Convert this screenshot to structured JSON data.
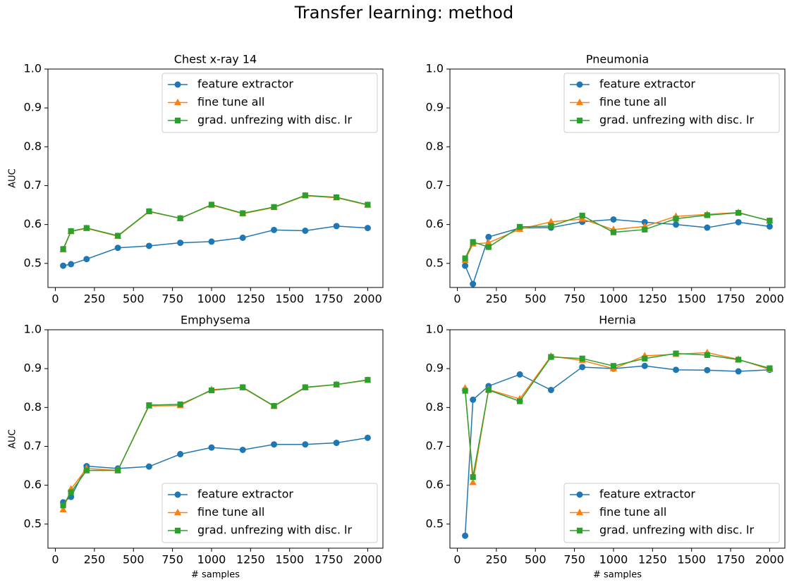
{
  "title": "Transfer learning: method",
  "chart_data": [
    {
      "type": "line",
      "title": "Chest x-ray 14",
      "ylabel": "AUC",
      "legend": "upper right",
      "x": [
        50,
        100,
        200,
        400,
        600,
        800,
        1000,
        1200,
        1400,
        1600,
        1800,
        2000
      ],
      "xlim": [
        -47.5,
        2097.5
      ],
      "xticks": [
        0,
        250,
        500,
        750,
        1000,
        1250,
        1500,
        1750,
        2000
      ],
      "ylim": [
        0.438,
        1.0
      ],
      "yticks": [
        0.5,
        0.6,
        0.7,
        0.8,
        0.9,
        {
          "value": 1,
          "label": "1.0"
        }
      ],
      "series": [
        {
          "name": "feature extractor",
          "color": "#1f77b4",
          "marker": "o",
          "values": [
            0.494,
            0.498,
            0.511,
            0.54,
            0.545,
            0.553,
            0.556,
            0.566,
            0.586,
            0.584,
            0.596,
            0.591
          ]
        },
        {
          "name": "fine tune all",
          "color": "#ff7f0e",
          "marker": "^",
          "values": [
            0.535,
            0.582,
            0.59,
            0.57,
            0.633,
            0.616,
            0.65,
            0.628,
            0.644,
            0.674,
            0.669,
            0.65
          ]
        },
        {
          "name": "grad. unfrezing with disc. lr",
          "color": "#2ca02c",
          "marker": "s",
          "values": [
            0.537,
            0.583,
            0.591,
            0.571,
            0.634,
            0.616,
            0.651,
            0.629,
            0.645,
            0.675,
            0.67,
            0.651
          ]
        }
      ]
    },
    {
      "type": "line",
      "title": "Pneumonia",
      "legend": "upper right",
      "x": [
        50,
        100,
        200,
        400,
        600,
        800,
        1000,
        1200,
        1400,
        1600,
        1800,
        2000
      ],
      "xlim": [
        -47.5,
        2097.5
      ],
      "xticks": [
        0,
        250,
        500,
        750,
        1000,
        1250,
        1500,
        1750,
        2000
      ],
      "ylim": [
        0.438,
        1.0
      ],
      "yticks": [
        0.5,
        0.6,
        0.7,
        0.8,
        0.9,
        {
          "value": 1,
          "label": "1.0"
        }
      ],
      "series": [
        {
          "name": "feature extractor",
          "color": "#1f77b4",
          "marker": "o",
          "values": [
            0.494,
            0.447,
            0.568,
            0.591,
            0.592,
            0.607,
            0.613,
            0.606,
            0.6,
            0.592,
            0.606,
            0.595
          ]
        },
        {
          "name": "fine tune all",
          "color": "#ff7f0e",
          "marker": "^",
          "values": [
            0.508,
            0.55,
            0.553,
            0.588,
            0.607,
            0.614,
            0.587,
            0.595,
            0.621,
            0.626,
            0.631,
            0.609
          ]
        },
        {
          "name": "grad. unfrezing with disc. lr",
          "color": "#2ca02c",
          "marker": "s",
          "values": [
            0.513,
            0.555,
            0.542,
            0.594,
            0.596,
            0.623,
            0.58,
            0.587,
            0.615,
            0.624,
            0.63,
            0.61
          ]
        }
      ]
    },
    {
      "type": "line",
      "title": "Emphysema",
      "ylabel": "AUC",
      "xlabel": "# samples",
      "legend": "lower right",
      "x": [
        50,
        100,
        200,
        400,
        600,
        800,
        1000,
        1200,
        1400,
        1600,
        1800,
        2000
      ],
      "xlim": [
        -47.5,
        2097.5
      ],
      "xticks": [
        0,
        250,
        500,
        750,
        1000,
        1250,
        1500,
        1750,
        2000
      ],
      "ylim": [
        0.438,
        1.0
      ],
      "yticks": [
        0.5,
        0.6,
        0.7,
        0.8,
        0.9,
        {
          "value": 1,
          "label": "1.0"
        }
      ],
      "series": [
        {
          "name": "feature extractor",
          "color": "#1f77b4",
          "marker": "o",
          "values": [
            0.556,
            0.57,
            0.649,
            0.643,
            0.648,
            0.68,
            0.697,
            0.691,
            0.705,
            0.705,
            0.709,
            0.722
          ]
        },
        {
          "name": "fine tune all",
          "color": "#ff7f0e",
          "marker": "^",
          "values": [
            0.537,
            0.59,
            0.643,
            0.638,
            0.804,
            0.805,
            0.846,
            0.851,
            0.803,
            0.851,
            0.859,
            0.87
          ]
        },
        {
          "name": "grad. unfrezing with disc. lr",
          "color": "#2ca02c",
          "marker": "s",
          "values": [
            0.548,
            0.582,
            0.638,
            0.638,
            0.806,
            0.808,
            0.844,
            0.852,
            0.804,
            0.852,
            0.859,
            0.871
          ]
        }
      ]
    },
    {
      "type": "line",
      "title": "Hernia",
      "xlabel": "# samples",
      "legend": "lower right",
      "x": [
        50,
        100,
        200,
        400,
        600,
        800,
        1000,
        1200,
        1400,
        1600,
        1800,
        2000
      ],
      "xlim": [
        -47.5,
        2097.5
      ],
      "xticks": [
        0,
        250,
        500,
        750,
        1000,
        1250,
        1500,
        1750,
        2000
      ],
      "ylim": [
        0.438,
        1.0
      ],
      "yticks": [
        0.5,
        0.6,
        0.7,
        0.8,
        0.9,
        {
          "value": 1,
          "label": "1.0"
        }
      ],
      "series": [
        {
          "name": "feature extractor",
          "color": "#1f77b4",
          "marker": "o",
          "values": [
            0.47,
            0.82,
            0.855,
            0.885,
            0.845,
            0.904,
            0.9,
            0.907,
            0.897,
            0.896,
            0.893,
            0.897
          ]
        },
        {
          "name": "fine tune all",
          "color": "#ff7f0e",
          "marker": "^",
          "values": [
            0.85,
            0.607,
            0.846,
            0.822,
            0.932,
            0.921,
            0.9,
            0.933,
            0.937,
            0.941,
            0.924,
            0.898
          ]
        },
        {
          "name": "grad. unfrezing with disc. lr",
          "color": "#2ca02c",
          "marker": "s",
          "values": [
            0.843,
            0.621,
            0.845,
            0.816,
            0.93,
            0.926,
            0.907,
            0.926,
            0.939,
            0.935,
            0.923,
            0.901
          ]
        }
      ]
    }
  ]
}
